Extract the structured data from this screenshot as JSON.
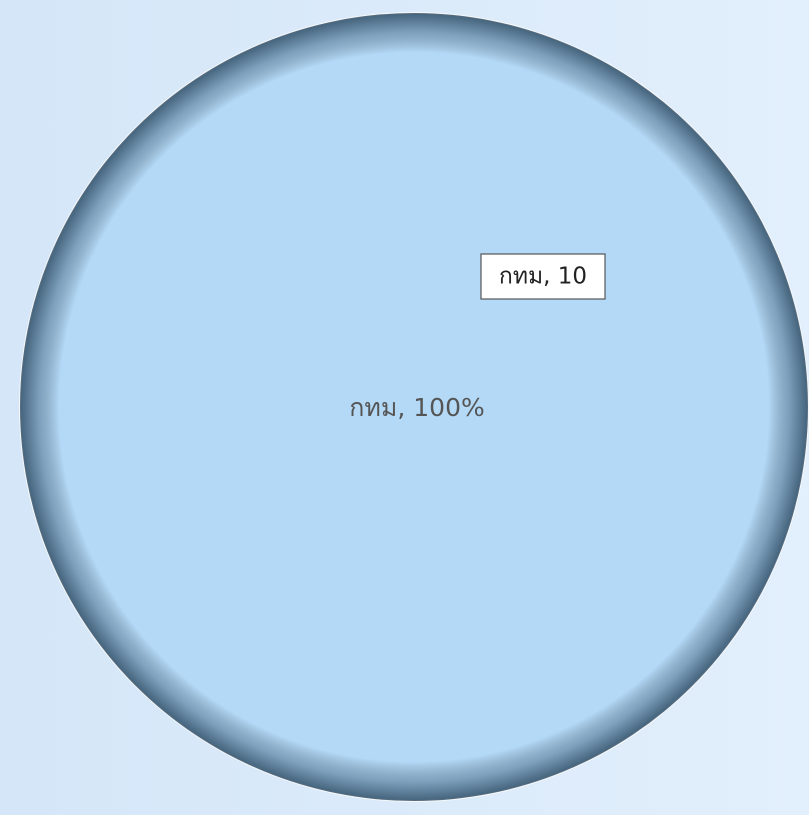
{
  "chart_data": {
    "type": "pie",
    "values": [
      100
    ],
    "value_labels": [
      "กทม, 100%"
    ],
    "colors": [
      "#b3d9f7"
    ],
    "tooltip": "กทม, 10"
  }
}
